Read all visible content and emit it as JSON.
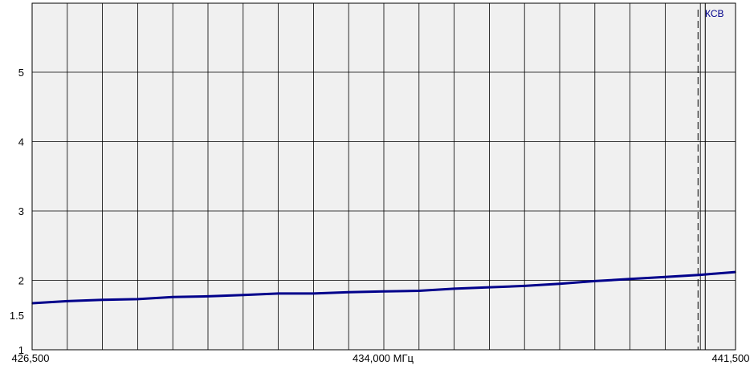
{
  "chart_data": {
    "type": "line",
    "x_range": [
      426.5,
      441.5
    ],
    "ylim": [
      1,
      6
    ],
    "y_ticks": [
      {
        "value": 5,
        "label": "5"
      },
      {
        "value": 4,
        "label": "4"
      },
      {
        "value": 3,
        "label": "3"
      },
      {
        "value": 2,
        "label": "2"
      },
      {
        "value": 1.5,
        "label": "1.5"
      },
      {
        "value": 1,
        "label": "1"
      }
    ],
    "x_tick_labels": {
      "left": "426,500",
      "center": "434,000 МГц",
      "right": "441,500"
    },
    "vertical_gridlines": 20,
    "grid": true,
    "marker_x": 440.7,
    "series": [
      {
        "name": "КСВ",
        "color": "#00008b",
        "x": [
          426.5,
          427.25,
          428.0,
          428.75,
          429.5,
          430.25,
          431.0,
          431.75,
          432.5,
          433.25,
          434.0,
          434.75,
          435.5,
          436.25,
          437.0,
          437.75,
          438.5,
          439.25,
          440.0,
          440.75,
          441.5
        ],
        "y": [
          1.67,
          1.7,
          1.72,
          1.73,
          1.76,
          1.77,
          1.79,
          1.81,
          1.81,
          1.83,
          1.84,
          1.85,
          1.88,
          1.9,
          1.92,
          1.95,
          1.99,
          2.02,
          2.05,
          2.08,
          2.12
        ]
      }
    ]
  },
  "colors": {
    "plot_background": "#f0f0f0",
    "grid": "#000000",
    "series": "#00008b",
    "marker": "#000000"
  }
}
